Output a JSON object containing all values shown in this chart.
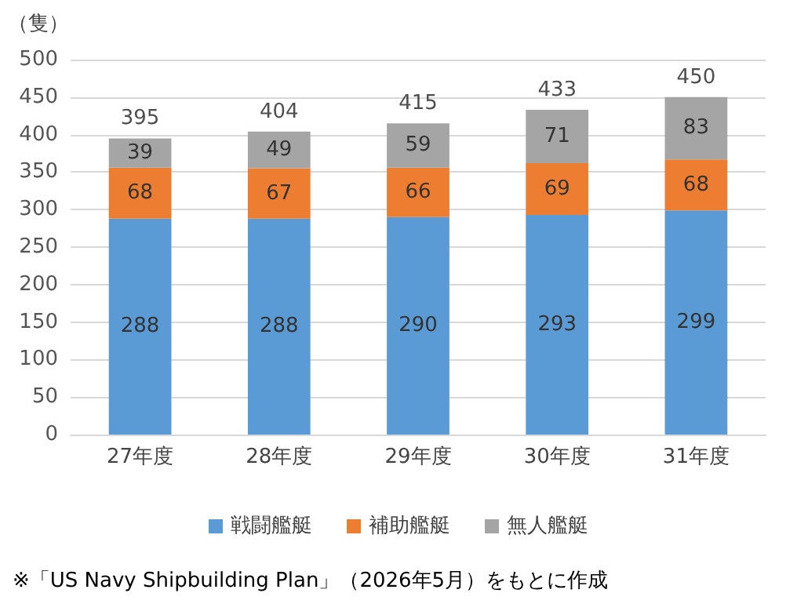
{
  "chart_data": {
    "type": "bar",
    "stacked": true,
    "ylabel": "（隻）",
    "categories": [
      "27年度",
      "28年度",
      "29年度",
      "30年度",
      "31年度"
    ],
    "series": [
      {
        "name": "戦闘艦艇",
        "color": "#5b9bd5",
        "values": [
          288,
          288,
          290,
          293,
          299
        ]
      },
      {
        "name": "補助艦艇",
        "color": "#ed7d31",
        "values": [
          68,
          67,
          66,
          69,
          68
        ]
      },
      {
        "name": "無人艦艇",
        "color": "#a5a5a5",
        "values": [
          39,
          49,
          59,
          71,
          83
        ]
      }
    ],
    "totals": [
      "395",
      "404",
      "415",
      "433",
      "450"
    ],
    "ylim": [
      0,
      500
    ],
    "yticks": [
      0,
      50,
      100,
      150,
      200,
      250,
      300,
      350,
      400,
      450,
      500
    ],
    "grid": "y",
    "legend": "bottom",
    "data_labels": true,
    "annotations": [
      "※「US Navy Shipbuilding Plan」（2026年5月）をもとに作成"
    ]
  }
}
